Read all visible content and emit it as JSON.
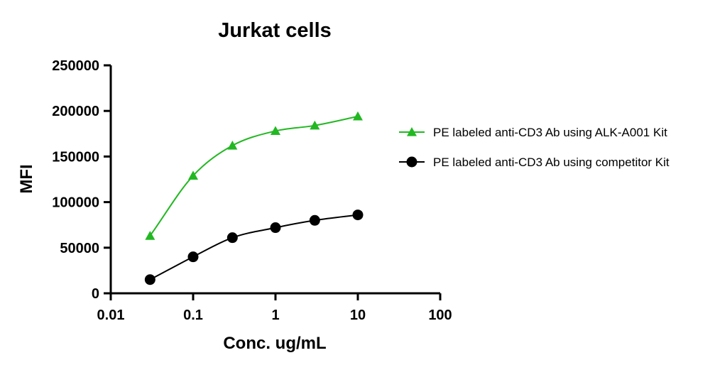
{
  "chart_data": {
    "type": "scatter",
    "title": "Jurkat cells",
    "xlabel": "Conc. ug/mL",
    "ylabel": "MFI",
    "xscale": "log",
    "xlim": [
      0.01,
      100
    ],
    "ylim": [
      0,
      250000
    ],
    "xticks": [
      {
        "value": 0.01,
        "label": "0.01"
      },
      {
        "value": 0.1,
        "label": "0.1"
      },
      {
        "value": 1,
        "label": "1"
      },
      {
        "value": 10,
        "label": "10"
      },
      {
        "value": 100,
        "label": "100"
      }
    ],
    "yticks": [
      {
        "value": 0,
        "label": "0"
      },
      {
        "value": 50000,
        "label": "50000"
      },
      {
        "value": 100000,
        "label": "100000"
      },
      {
        "value": 150000,
        "label": "150000"
      },
      {
        "value": 200000,
        "label": "200000"
      },
      {
        "value": 250000,
        "label": "250000"
      }
    ],
    "grid": false,
    "legend_position": "right",
    "series": [
      {
        "name": "PE labeled anti-CD3 Ab using ALK-A001 Kit",
        "color": "#22b822",
        "marker": "triangle",
        "x": [
          0.03,
          0.1,
          0.3,
          1,
          3,
          10
        ],
        "y": [
          63000,
          129000,
          162000,
          178000,
          184000,
          194000
        ]
      },
      {
        "name": "PE labeled anti-CD3 Ab using competitor Kit",
        "color": "#000000",
        "marker": "circle",
        "x": [
          0.03,
          0.1,
          0.3,
          1,
          3,
          10
        ],
        "y": [
          15000,
          40000,
          61000,
          72000,
          80000,
          86000
        ]
      }
    ]
  }
}
